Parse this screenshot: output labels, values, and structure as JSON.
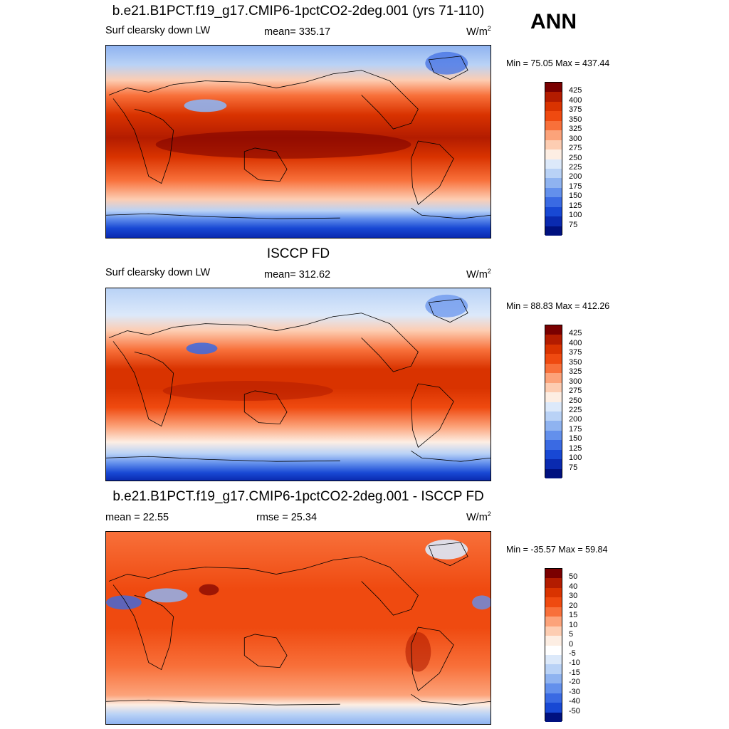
{
  "season": "ANN",
  "panels": [
    {
      "title": "b.e21.B1PCT.f19_g17.CMIP6-1pctCO2-2deg.001 (yrs 71-110)",
      "left_label": "Surf clearsky down LW",
      "center_label": "mean= 335.17",
      "units_base": "W/m",
      "units_exp": "2",
      "minmax": "Min =  75.05 Max = 437.44",
      "colorbar_labels": [
        "425",
        "400",
        "375",
        "350",
        "325",
        "300",
        "275",
        "250",
        "225",
        "200",
        "175",
        "150",
        "125",
        "100",
        "75"
      ],
      "colors": [
        "#7a0000",
        "#b31c00",
        "#d93300",
        "#ef4a10",
        "#f8703a",
        "#fca37a",
        "#fdcdb2",
        "#fdeee3",
        "#dce9fa",
        "#b9d2f6",
        "#8fb3f0",
        "#6390ec",
        "#3a6ae3",
        "#1848d4",
        "#0a2ab0",
        "#00117f"
      ]
    },
    {
      "title": "ISCCP FD",
      "left_label": "Surf clearsky down LW",
      "center_label": "mean= 312.62",
      "units_base": "W/m",
      "units_exp": "2",
      "minmax": "Min =  88.83 Max = 412.26",
      "colorbar_labels": [
        "425",
        "400",
        "375",
        "350",
        "325",
        "300",
        "275",
        "250",
        "225",
        "200",
        "175",
        "150",
        "125",
        "100",
        "75"
      ],
      "colors": [
        "#7a0000",
        "#b31c00",
        "#d93300",
        "#ef4a10",
        "#f8703a",
        "#fca37a",
        "#fdcdb2",
        "#fdeee3",
        "#dce9fa",
        "#b9d2f6",
        "#8fb3f0",
        "#6390ec",
        "#3a6ae3",
        "#1848d4",
        "#0a2ab0",
        "#00117f"
      ]
    },
    {
      "title": "b.e21.B1PCT.f19_g17.CMIP6-1pctCO2-2deg.001 - ISCCP FD",
      "left_label": "mean =  22.55",
      "center_label": "rmse =  25.34",
      "units_base": "W/m",
      "units_exp": "2",
      "minmax": "Min = -35.57 Max =  59.84",
      "colorbar_labels": [
        "50",
        "40",
        "30",
        "20",
        "15",
        "10",
        "5",
        "0",
        "-5",
        "-10",
        "-15",
        "-20",
        "-30",
        "-40",
        "-50"
      ],
      "colors": [
        "#7a0000",
        "#b31c00",
        "#d93300",
        "#ef4a10",
        "#f8703a",
        "#fca37a",
        "#fdcdb2",
        "#fdeee3",
        "#ffffff",
        "#dce9fa",
        "#b9d2f6",
        "#8fb3f0",
        "#6390ec",
        "#3a6ae3",
        "#1848d4",
        "#00117f"
      ]
    }
  ]
}
